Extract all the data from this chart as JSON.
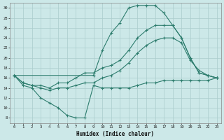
{
  "xlabel": "Humidex (Indice chaleur)",
  "background_color": "#cce8e8",
  "grid_color": "#aacccc",
  "line_color": "#2e7d6e",
  "xlim": [
    -0.5,
    23.5
  ],
  "ylim": [
    7,
    31
  ],
  "xticks": [
    0,
    1,
    2,
    3,
    4,
    5,
    6,
    7,
    8,
    9,
    10,
    11,
    12,
    13,
    14,
    15,
    16,
    17,
    18,
    19,
    20,
    21,
    22,
    23
  ],
  "yticks": [
    8,
    10,
    12,
    14,
    16,
    18,
    20,
    22,
    24,
    26,
    28,
    30
  ],
  "line1_x": [
    0,
    1,
    2,
    3,
    4,
    5,
    6,
    7,
    8,
    9,
    10,
    11,
    12,
    13,
    14,
    15,
    16,
    17,
    18,
    19,
    20,
    21,
    22,
    23
  ],
  "line1_y": [
    16.5,
    14.5,
    14.0,
    12.0,
    11.0,
    10.0,
    8.5,
    8.0,
    8.0,
    14.5,
    14.0,
    14.0,
    14.0,
    14.0,
    14.5,
    15.0,
    15.0,
    15.5,
    15.5,
    15.5,
    15.5,
    15.5,
    15.5,
    16.0
  ],
  "line2_x": [
    0,
    1,
    2,
    3,
    4,
    5,
    6,
    7,
    8,
    9,
    10,
    11,
    12,
    13,
    14,
    15,
    16,
    17,
    18,
    19,
    20,
    21,
    22,
    23
  ],
  "line2_y": [
    16.5,
    15.0,
    14.5,
    14.5,
    14.0,
    15.0,
    15.0,
    16.0,
    17.0,
    17.0,
    18.0,
    18.5,
    19.5,
    21.5,
    24.0,
    25.5,
    26.5,
    26.5,
    26.5,
    24.0,
    20.0,
    17.0,
    16.5,
    16.0
  ],
  "line3_x": [
    0,
    9,
    10,
    11,
    12,
    13,
    14,
    15,
    16,
    17,
    18,
    19,
    20,
    21,
    22,
    23
  ],
  "line3_y": [
    16.5,
    16.5,
    21.5,
    25.0,
    27.0,
    30.0,
    30.5,
    30.5,
    30.5,
    29.0,
    26.5,
    24.0,
    20.0,
    17.0,
    16.5,
    16.0
  ],
  "line4_x": [
    0,
    1,
    2,
    3,
    4,
    5,
    6,
    7,
    8,
    9,
    10,
    11,
    12,
    13,
    14,
    15,
    16,
    17,
    18,
    19,
    20,
    21,
    22,
    23
  ],
  "line4_y": [
    16.5,
    15.0,
    14.5,
    14.0,
    13.5,
    14.0,
    14.0,
    14.5,
    15.0,
    15.0,
    16.0,
    16.5,
    17.5,
    19.0,
    21.0,
    22.5,
    23.5,
    24.0,
    24.0,
    23.0,
    19.5,
    17.5,
    16.5,
    16.0
  ]
}
